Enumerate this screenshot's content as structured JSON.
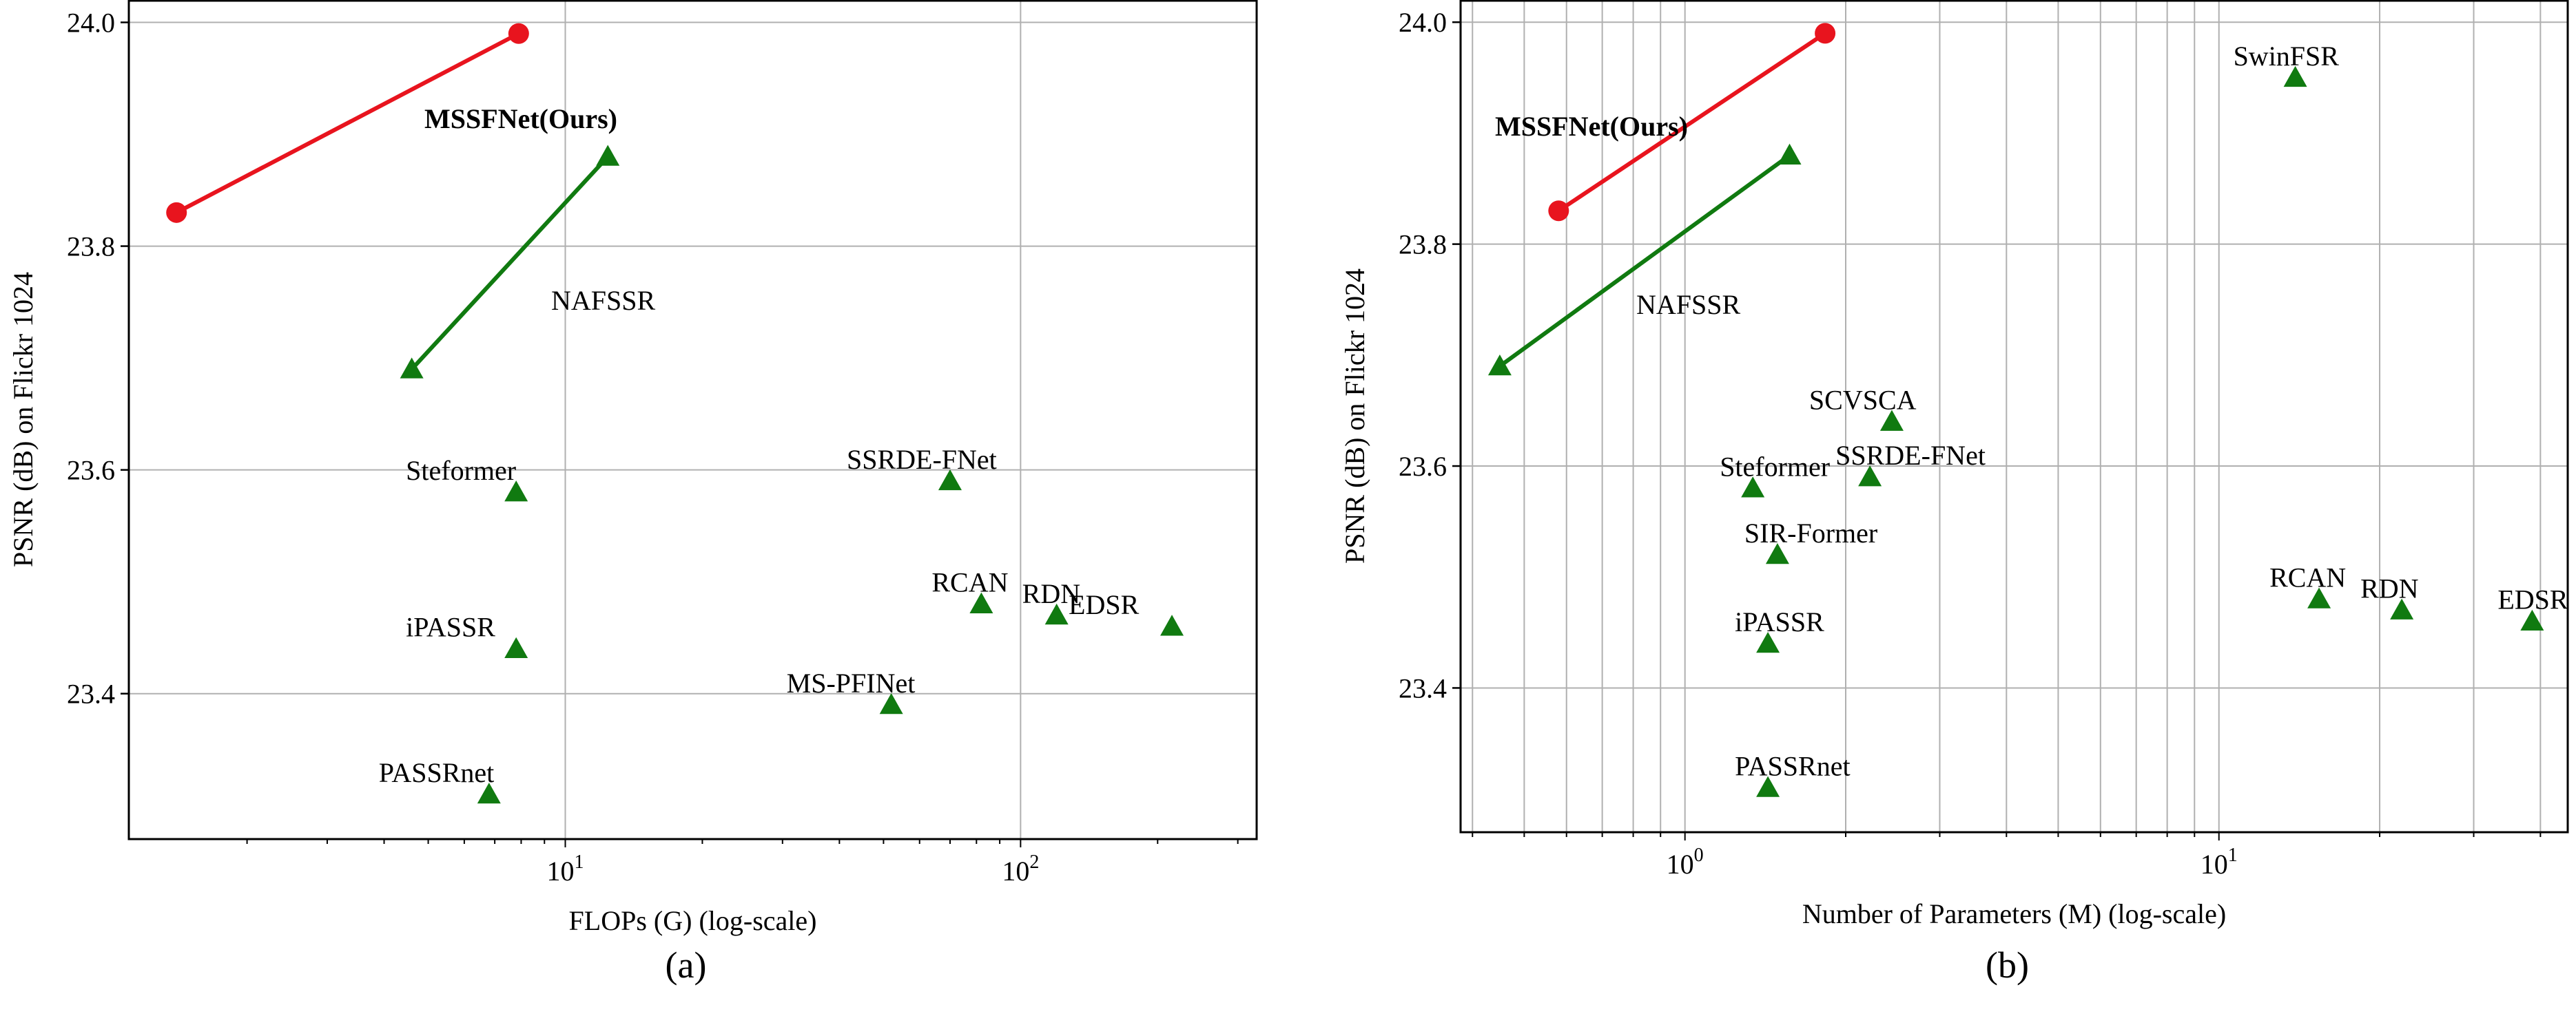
{
  "colors": {
    "ours": "#e8141e",
    "naf": "#107a10",
    "other": "#107a10",
    "grid": "#b0b0b0"
  },
  "chart_data": [
    {
      "type": "scatter",
      "caption": "(a)",
      "xlabel": "FLOPs (G) (log-scale)",
      "ylabel": "PSNR (dB) on Flickr 1024",
      "xscale": "log",
      "xlim": [
        1.1,
        330
      ],
      "ylim": [
        23.27,
        24.02
      ],
      "xticks": [
        {
          "value": 10,
          "base": "10",
          "exp": "1"
        },
        {
          "value": 100,
          "base": "10",
          "exp": "2"
        }
      ],
      "yticks": [
        "23.4",
        "23.6",
        "23.8",
        "24.0"
      ],
      "grid": true,
      "series": [
        {
          "name": "MSSFNet(Ours)",
          "marker": "circle",
          "color": "#e8141e",
          "connected": true,
          "points": [
            {
              "x": 1.4,
              "y": 23.83
            },
            {
              "x": 7.9,
              "y": 23.99
            }
          ]
        },
        {
          "name": "NAFSSR",
          "marker": "triangle",
          "color": "#107a10",
          "connected": true,
          "points": [
            {
              "x": 4.6,
              "y": 23.69
            },
            {
              "x": 12.4,
              "y": 23.88
            }
          ]
        }
      ],
      "points": [
        {
          "label": "Steformer",
          "x": 7.8,
          "y": 23.58
        },
        {
          "label": "iPASSR",
          "x": 7.8,
          "y": 23.44
        },
        {
          "label": "PASSRnet",
          "x": 6.8,
          "y": 23.31
        },
        {
          "label": "SSRDE-FNet",
          "x": 70,
          "y": 23.59
        },
        {
          "label": "RCAN",
          "x": 82,
          "y": 23.48
        },
        {
          "label": "RDN",
          "x": 120,
          "y": 23.47
        },
        {
          "label": "EDSR",
          "x": 215,
          "y": 23.46
        },
        {
          "label": "MS-PFINet",
          "x": 52,
          "y": 23.39
        }
      ],
      "annotations": [
        "MSSFNet(Ours)",
        "NAFSSR"
      ]
    },
    {
      "type": "scatter",
      "caption": "(b)",
      "xlabel": "Number of Parameters (M) (log-scale)",
      "ylabel": "PSNR (dB) on Flickr 1024",
      "xscale": "log",
      "xlim": [
        0.38,
        45
      ],
      "ylim": [
        23.27,
        24.02
      ],
      "xticks": [
        {
          "value": 1,
          "base": "10",
          "exp": "0"
        },
        {
          "value": 10,
          "base": "10",
          "exp": "1"
        }
      ],
      "yticks": [
        "23.4",
        "23.6",
        "23.8",
        "24.0"
      ],
      "grid": true,
      "series": [
        {
          "name": "MSSFNet(Ours)",
          "marker": "circle",
          "color": "#e8141e",
          "connected": true,
          "points": [
            {
              "x": 0.58,
              "y": 23.83
            },
            {
              "x": 1.83,
              "y": 23.99
            }
          ]
        },
        {
          "name": "NAFSSR",
          "marker": "triangle",
          "color": "#107a10",
          "connected": true,
          "points": [
            {
              "x": 0.45,
              "y": 23.69
            },
            {
              "x": 1.57,
              "y": 23.88
            }
          ]
        }
      ],
      "points": [
        {
          "label": "SwinFSR",
          "x": 13.9,
          "y": 23.95
        },
        {
          "label": "SCVSCA",
          "x": 2.44,
          "y": 23.64
        },
        {
          "label": "SSRDE-FNet",
          "x": 2.22,
          "y": 23.59
        },
        {
          "label": "Steformer",
          "x": 1.34,
          "y": 23.58
        },
        {
          "label": "SIR-Former",
          "x": 1.49,
          "y": 23.52
        },
        {
          "label": "iPASSR",
          "x": 1.43,
          "y": 23.44
        },
        {
          "label": "PASSRnet",
          "x": 1.43,
          "y": 23.31
        },
        {
          "label": "RCAN",
          "x": 15.4,
          "y": 23.48
        },
        {
          "label": "RDN",
          "x": 22,
          "y": 23.47
        },
        {
          "label": "EDSR",
          "x": 38.6,
          "y": 23.46
        }
      ],
      "annotations": [
        "MSSFNet(Ours)",
        "NAFSSR"
      ]
    }
  ]
}
